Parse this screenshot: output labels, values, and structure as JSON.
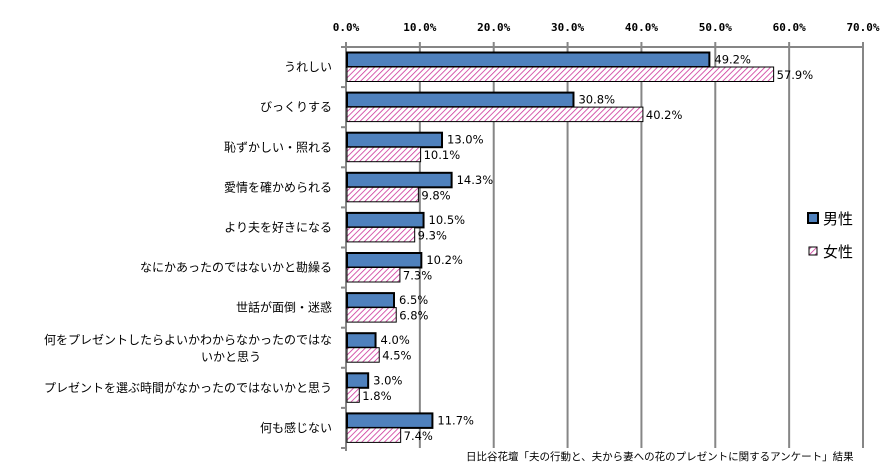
{
  "chart_data": {
    "type": "bar",
    "orientation": "horizontal",
    "title": "",
    "xlabel": "",
    "ylabel": "",
    "xlim": [
      0,
      70
    ],
    "x_ticks": [
      "0.0%",
      "10.0%",
      "20.0%",
      "30.0%",
      "40.0%",
      "50.0%",
      "60.0%",
      "70.0%"
    ],
    "x_tick_values": [
      0,
      10,
      20,
      30,
      40,
      50,
      60,
      70
    ],
    "axis_position": "top",
    "grid": true,
    "categories": [
      [
        "うれしい"
      ],
      [
        "びっくりする"
      ],
      [
        "恥ずかしい・照れる"
      ],
      [
        "愛情を確かめられる"
      ],
      [
        "より夫を好きになる"
      ],
      [
        "なにかあったのではないかと勘繰る"
      ],
      [
        "世話が面倒・迷惑"
      ],
      [
        "何をプレゼントしたらよいかわからなかったのではな",
        "いかと思う"
      ],
      [
        "プレゼントを選ぶ時間がなかったのではないかと思う"
      ],
      [
        "何も感じない"
      ]
    ],
    "series": [
      {
        "name": "男性",
        "color": "#4f81bd",
        "pattern": "solid",
        "values": [
          49.2,
          30.8,
          13.0,
          14.3,
          10.5,
          10.2,
          6.5,
          4.0,
          3.0,
          11.7
        ],
        "labels": [
          "49.2%",
          "30.8%",
          "13.0%",
          "14.3%",
          "10.5%",
          "10.2%",
          "6.5%",
          "4.0%",
          "3.0%",
          "11.7%"
        ]
      },
      {
        "name": "女性",
        "color": "#cc3399",
        "pattern": "diagonal-hatch",
        "values": [
          57.9,
          40.2,
          10.1,
          9.8,
          9.3,
          7.3,
          6.8,
          4.5,
          1.8,
          7.4
        ],
        "labels": [
          "57.9%",
          "40.2%",
          "10.1%",
          "9.8%",
          "9.3%",
          "7.3%",
          "6.8%",
          "4.5%",
          "1.8%",
          "7.4%"
        ]
      }
    ],
    "legend_position": "right",
    "source": "日比谷花壇「夫の行動と、夫から妻への花のプレゼントに関するアンケート」結果"
  }
}
